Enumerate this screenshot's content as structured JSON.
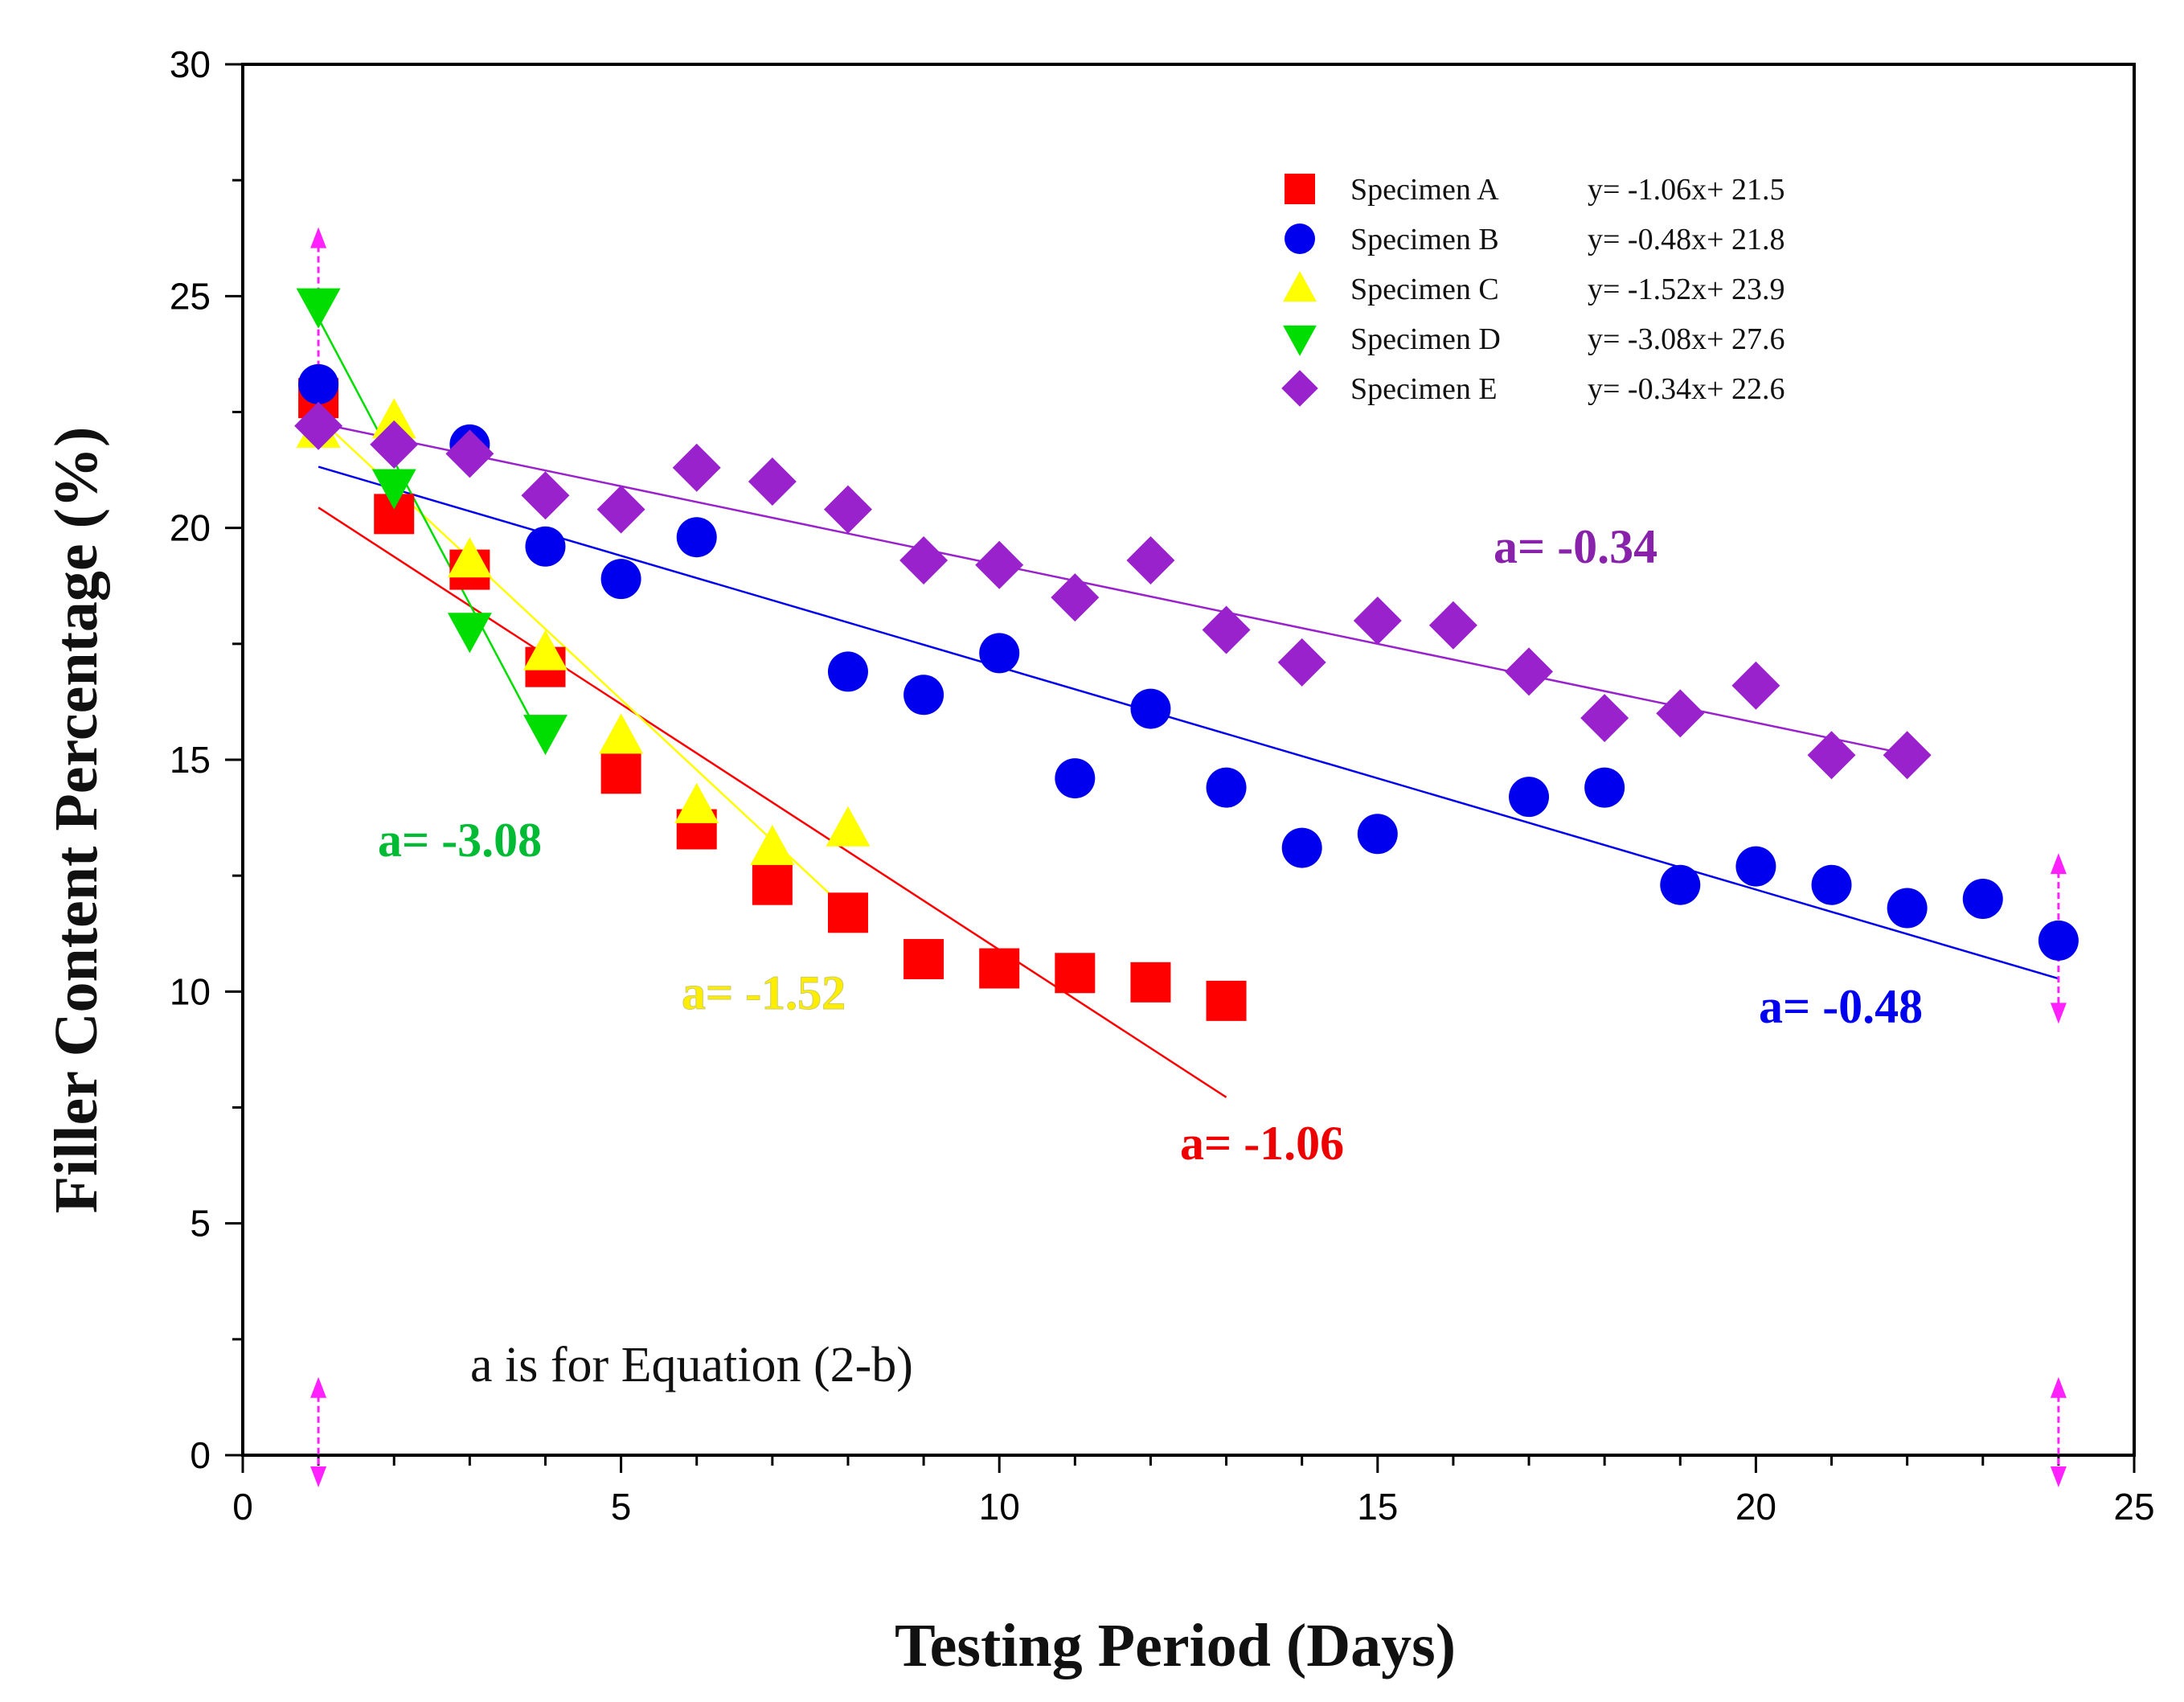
{
  "chart_data": {
    "type": "scatter",
    "xlabel": "Testing Period (Days)",
    "ylabel": "Filler Content Percentage (%)",
    "xlim": [
      0,
      25
    ],
    "ylim": [
      0,
      30
    ],
    "x_ticks": [
      "0",
      "5",
      "10",
      "15",
      "20",
      "25"
    ],
    "y_ticks": [
      "0",
      "5",
      "10",
      "15",
      "20",
      "25",
      "30"
    ],
    "legend_position": "top-right",
    "note": "a is for Equation (2-b)",
    "series": [
      {
        "name": "Specimen A",
        "equation": "y= -1.06x+ 21.5",
        "marker": "square",
        "color": "#ff0000",
        "x": [
          1,
          2,
          3,
          4,
          5,
          6,
          7,
          8,
          9,
          10,
          11,
          12,
          13
        ],
        "y": [
          22.8,
          20.3,
          19.1,
          17.0,
          14.7,
          13.5,
          12.3,
          11.7,
          10.7,
          10.5,
          10.4,
          10.2,
          9.8
        ],
        "fit": {
          "x_range": [
            1,
            13
          ],
          "slope": -1.06,
          "intercept": 21.5
        },
        "annotation": "a= -1.06"
      },
      {
        "name": "Specimen B",
        "equation": "y= -0.48x+ 21.8",
        "marker": "circle",
        "color": "#0000ee",
        "x": [
          1,
          3,
          4,
          5,
          6,
          8,
          9,
          10,
          11,
          12,
          13,
          14,
          15,
          17,
          18,
          19,
          20,
          21,
          22,
          23,
          24
        ],
        "y": [
          23.1,
          21.8,
          19.6,
          18.9,
          19.8,
          16.9,
          16.4,
          17.3,
          14.6,
          16.1,
          14.4,
          13.1,
          13.4,
          14.2,
          14.4,
          12.3,
          12.7,
          12.3,
          11.8,
          12.0,
          11.1
        ],
        "fit": {
          "x_range": [
            1,
            24
          ],
          "slope": -0.48,
          "intercept": 21.8
        },
        "annotation": "a= -0.48"
      },
      {
        "name": "Specimen C",
        "equation": "y= -1.52x+ 23.9",
        "marker": "triangle-up",
        "color": "#ffff00",
        "x": [
          1,
          2,
          3,
          4,
          5,
          6,
          7,
          8
        ],
        "y": [
          22.1,
          22.3,
          19.3,
          17.3,
          15.5,
          14.0,
          13.1,
          13.5
        ],
        "fit": {
          "x_range": [
            1,
            8
          ],
          "slope": -1.52,
          "intercept": 23.9
        },
        "annotation": "a= -1.52"
      },
      {
        "name": "Specimen D",
        "equation": "y= -3.08x+ 27.6",
        "marker": "triangle-down",
        "color": "#00dd00",
        "x": [
          1,
          2,
          3,
          4
        ],
        "y": [
          24.8,
          20.9,
          17.8,
          15.6
        ],
        "fit": {
          "x_range": [
            1,
            4
          ],
          "slope": -3.08,
          "intercept": 27.6
        },
        "annotation": "a= -3.08"
      },
      {
        "name": "Specimen E",
        "equation": "y= -0.34x+ 22.6",
        "marker": "diamond",
        "color": "#9922cc",
        "x": [
          1,
          2,
          3,
          4,
          5,
          6,
          7,
          8,
          9,
          10,
          11,
          12,
          13,
          14,
          15,
          16,
          17,
          18,
          19,
          20,
          21,
          22
        ],
        "y": [
          22.2,
          21.8,
          21.6,
          20.7,
          20.4,
          21.3,
          21.0,
          20.4,
          19.3,
          19.2,
          18.5,
          19.3,
          17.8,
          17.1,
          18.0,
          17.9,
          16.9,
          15.9,
          16.0,
          16.6,
          15.1,
          15.1
        ],
        "fit": {
          "x_range": [
            1,
            22
          ],
          "slope": -0.34,
          "intercept": 22.6
        },
        "annotation": "a= -0.34"
      }
    ],
    "range_markers": [
      {
        "x": 1,
        "y_range": [
          22.5,
          26.0
        ]
      },
      {
        "x": 1,
        "y_range": [
          0.0,
          1.2
        ]
      },
      {
        "x": 24,
        "y_range": [
          10.0,
          12.5
        ]
      },
      {
        "x": 24,
        "y_range": [
          0.0,
          1.2
        ]
      }
    ],
    "range_marker_color": "#ff22ff"
  }
}
